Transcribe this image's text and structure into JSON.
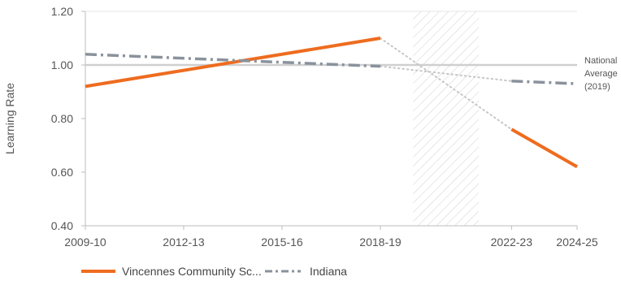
{
  "chart_data": {
    "type": "line",
    "title": "",
    "ylabel": "Learning Rate",
    "xlabel": "",
    "ylim": [
      0.4,
      1.2
    ],
    "yticks": [
      "1.20",
      "1.00",
      "0.80",
      "0.60",
      "0.40"
    ],
    "ytick_values": [
      1.2,
      1.0,
      0.8,
      0.6,
      0.4
    ],
    "x_tick_labels": [
      "2009-10",
      "2012-13",
      "2015-16",
      "2018-19",
      "2022-23",
      "2024-25"
    ],
    "x_tick_years": [
      2009,
      2012,
      2015,
      2018,
      2022,
      2024
    ],
    "x_range": [
      2009,
      2024
    ],
    "reference_line": {
      "value": 1.0,
      "label_lines": [
        "National",
        "Average",
        "(2019)"
      ]
    },
    "shaded_period": {
      "from": 2019,
      "to": 2021
    },
    "grid": false,
    "legend_position": "bottom-left",
    "series": [
      {
        "name": "Vincennes Community Sc...",
        "color": "#ee6c1f",
        "style": "solid",
        "segments": [
          {
            "x": [
              "2009-10",
              "2018-19"
            ],
            "y": [
              0.92,
              1.1
            ]
          },
          {
            "x": [
              "2022-23",
              "2024-25"
            ],
            "y": [
              0.76,
              0.62
            ]
          }
        ],
        "gap": {
          "x": [
            "2018-19",
            "2022-23"
          ],
          "y": [
            1.1,
            0.76
          ]
        }
      },
      {
        "name": "Indiana",
        "color": "#8a929c",
        "style": "dashed",
        "segments": [
          {
            "x": [
              "2009-10",
              "2018-19"
            ],
            "y": [
              1.04,
              0.995
            ]
          },
          {
            "x": [
              "2022-23",
              "2024-25"
            ],
            "y": [
              0.94,
              0.93
            ]
          }
        ],
        "gap": {
          "x": [
            "2018-19",
            "2022-23"
          ],
          "y": [
            0.995,
            0.94
          ]
        }
      }
    ]
  }
}
